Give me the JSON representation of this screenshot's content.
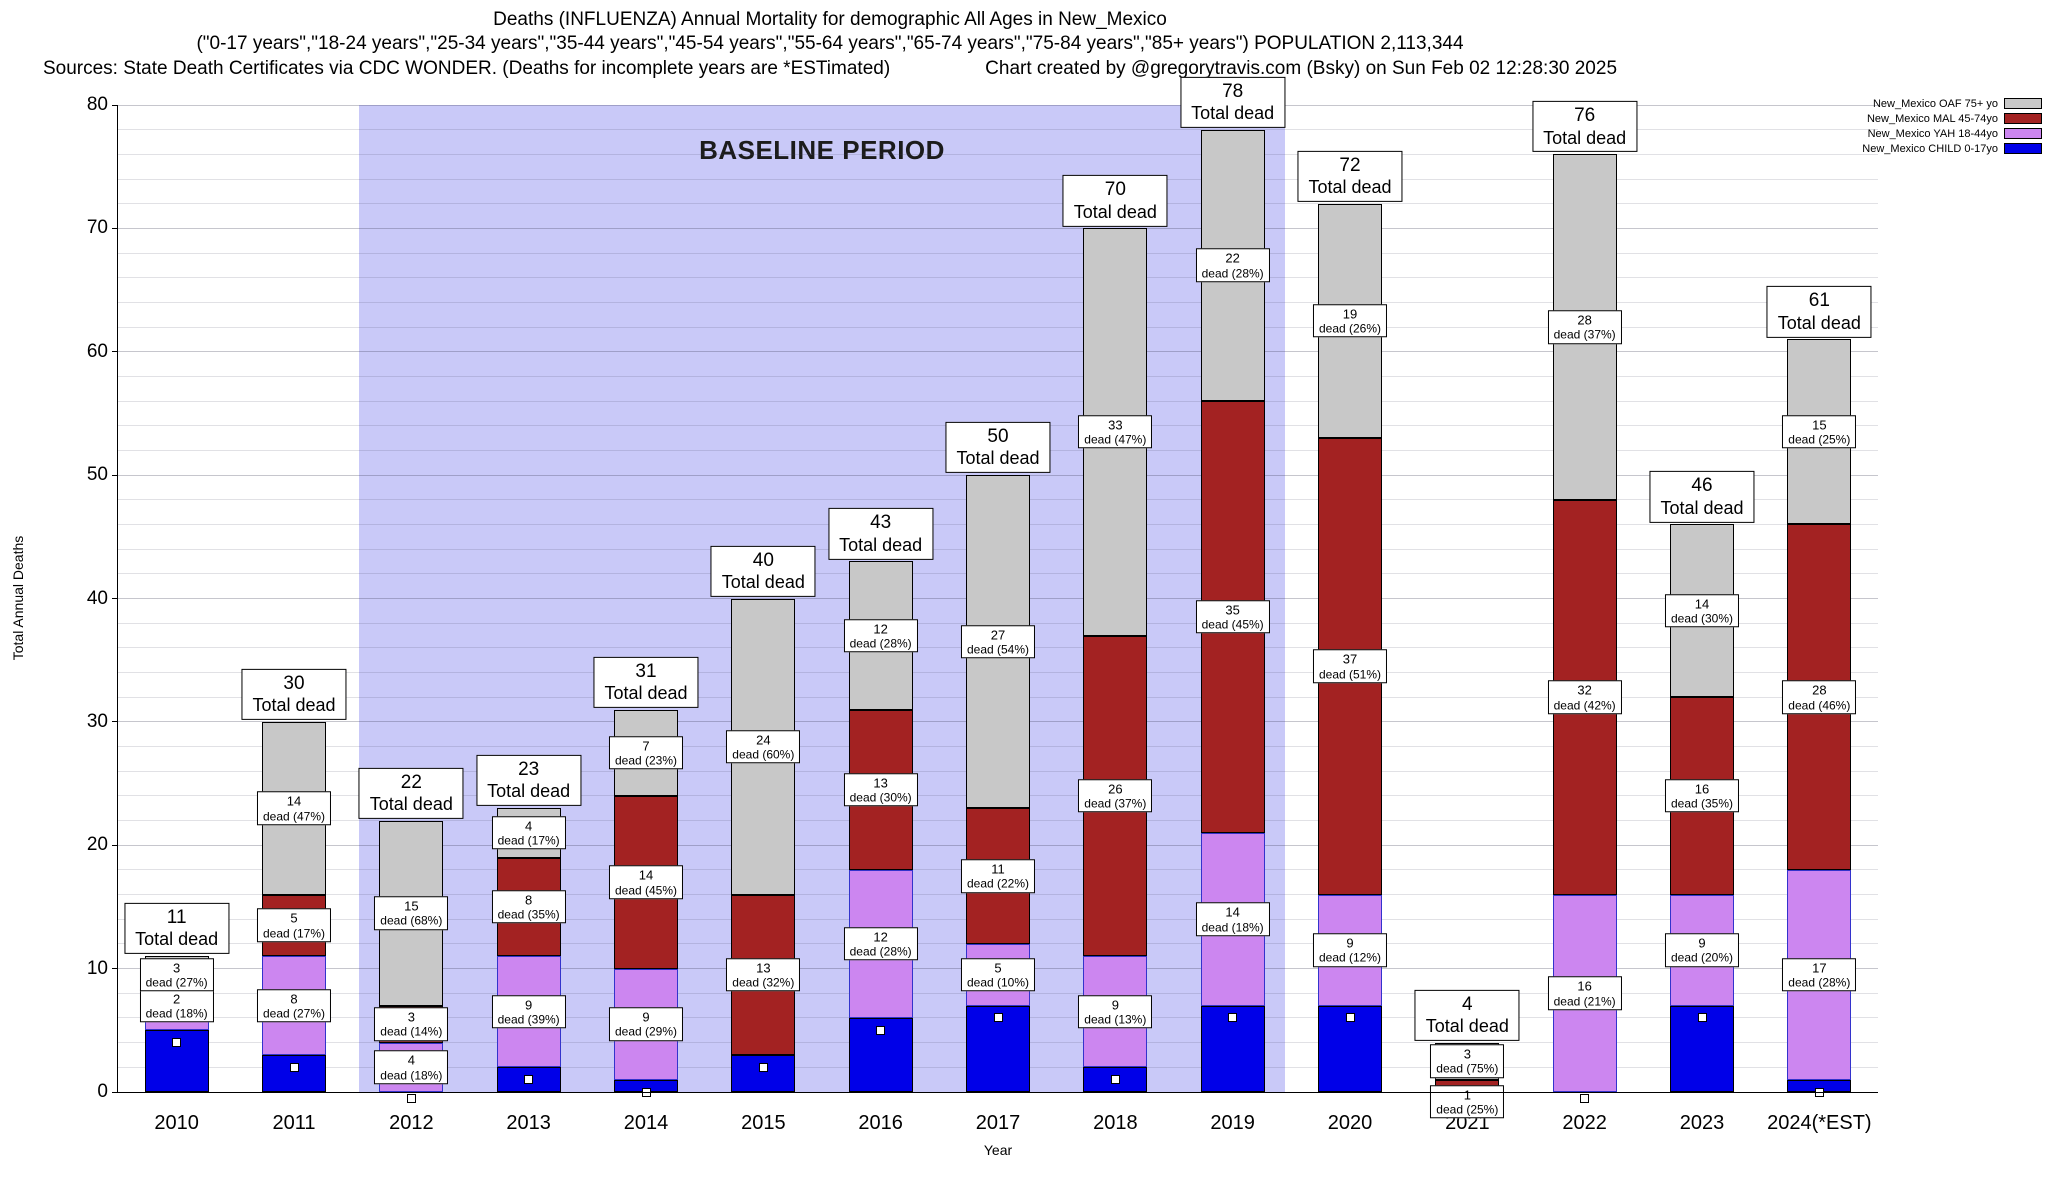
{
  "header": {
    "title_line1": "Deaths (INFLUENZA) Annual Mortality for demographic All Ages in New_Mexico",
    "title_line2": "(\"0-17 years\",\"18-24 years\",\"25-34 years\",\"35-44 years\",\"45-54 years\",\"55-64 years\",\"65-74 years\",\"75-84 years\",\"85+ years\") POPULATION 2,113,344",
    "sources": "Sources: State Death Certificates via CDC WONDER. (Deaths for incomplete years are *ESTimated)",
    "credit": "Chart created by @gregorytravis.com (Bsky) on Sun Feb 02 12:28:30 2025"
  },
  "labels": {
    "dead_word": "dead",
    "total_suffix": "Total dead"
  },
  "chart_data": {
    "type": "bar",
    "stacked": true,
    "title": "Deaths (INFLUENZA) Annual Mortality for demographic All Ages in New_Mexico",
    "xlabel": "Year",
    "ylabel": "Total Annual Deaths",
    "ylim": [
      0,
      80
    ],
    "y_ticks": [
      0,
      10,
      20,
      30,
      40,
      50,
      60,
      70,
      80
    ],
    "minor_grid_step": 2,
    "grid": true,
    "legend_position": "top-right",
    "baseline_region": {
      "label": "BASELINE PERIOD",
      "from_year": "2012",
      "to_year": "2019",
      "color": "#c9c9f8"
    },
    "categories": [
      "2010",
      "2011",
      "2012",
      "2013",
      "2014",
      "2015",
      "2016",
      "2017",
      "2018",
      "2019",
      "2020",
      "2021",
      "2022",
      "2023",
      "2024(*EST)"
    ],
    "totals": [
      11,
      30,
      22,
      23,
      31,
      40,
      43,
      50,
      70,
      78,
      72,
      4,
      76,
      46,
      61
    ],
    "series": [
      {
        "key": "child",
        "name": "New_Mexico CHILD 0-17yo",
        "color": "#0000e8",
        "border": "#000000",
        "values": [
          5,
          3,
          0,
          2,
          1,
          3,
          6,
          7,
          2,
          7,
          7,
          0,
          0,
          7,
          1
        ],
        "pct": [
          null,
          null,
          null,
          null,
          null,
          null,
          null,
          null,
          null,
          null,
          null,
          null,
          null,
          null,
          null
        ]
      },
      {
        "key": "yah",
        "name": "New_Mexico YAH 18-44yo",
        "color": "#cc86f0",
        "border": "#3333cc",
        "values": [
          1,
          8,
          4,
          9,
          9,
          0,
          12,
          5,
          9,
          14,
          9,
          0,
          16,
          9,
          17
        ],
        "pct": [
          null,
          27,
          18,
          39,
          29,
          null,
          28,
          10,
          13,
          18,
          12,
          null,
          21,
          20,
          28
        ]
      },
      {
        "key": "mal",
        "name": "New_Mexico MAL 45-74yo",
        "color": "#a32222",
        "border": "#000000",
        "values": [
          2,
          5,
          3,
          8,
          14,
          13,
          13,
          11,
          26,
          35,
          37,
          1,
          32,
          16,
          28
        ],
        "pct": [
          18,
          17,
          14,
          35,
          45,
          32,
          30,
          22,
          37,
          45,
          51,
          25,
          42,
          35,
          46
        ]
      },
      {
        "key": "oaf",
        "name": "New_Mexico OAF 75+ yo",
        "color": "#c8c8c8",
        "border": "#000000",
        "values": [
          3,
          14,
          15,
          4,
          7,
          24,
          12,
          27,
          33,
          22,
          19,
          3,
          28,
          14,
          15
        ],
        "pct": [
          27,
          47,
          68,
          17,
          23,
          60,
          28,
          54,
          47,
          28,
          26,
          75,
          37,
          30,
          25
        ]
      }
    ]
  }
}
